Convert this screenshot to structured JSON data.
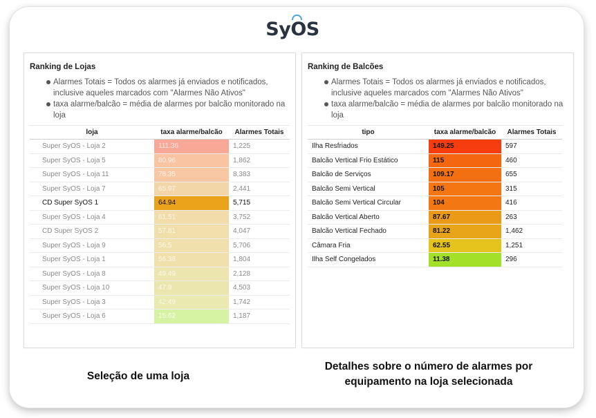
{
  "logo": {
    "text_pre": "Sy",
    "text_o": "O",
    "text_post": "S",
    "accent_color": "#4fa3d9"
  },
  "left_panel": {
    "title": "Ranking de Lojas",
    "notes": [
      "Alarmes Totais = Todos os alarmes já enviados e notificados, inclusive aqueles marcados com \"Alarmes Não Ativos\"",
      "taxa alarme/balcão = média de alarmes por balcão monitorado na loja"
    ],
    "headers": [
      "loja",
      "taxa alarme/balcão",
      "Alarmes Totais"
    ],
    "rows": [
      {
        "loja": "Super SyOS - Loja 2",
        "taxa": "111.36",
        "total": "1,225",
        "color": "#f9a898",
        "selected": false
      },
      {
        "loja": "Super SyOS - Loja 5",
        "taxa": "80.96",
        "total": "1,862",
        "color": "#f8c4a2",
        "selected": false
      },
      {
        "loja": "Super SyOS - Loja 11",
        "taxa": "78.35",
        "total": "8,383",
        "color": "#f8c8a4",
        "selected": false
      },
      {
        "loja": "Super SyOS - Loja 7",
        "taxa": "65.97",
        "total": "2,441",
        "color": "#f3d6a8",
        "selected": false
      },
      {
        "loja": "CD Super SyOS 1",
        "taxa": "64.94",
        "total": "5,715",
        "color": "#e9a21a",
        "selected": true
      },
      {
        "loja": "Super SyOS - Loja 4",
        "taxa": "61.51",
        "total": "3,752",
        "color": "#f2dcaa",
        "selected": false
      },
      {
        "loja": "CD Super SyOS 2",
        "taxa": "57.81",
        "total": "4,047",
        "color": "#f0dfab",
        "selected": false
      },
      {
        "loja": "Super SyOS - Loja 9",
        "taxa": "56.5",
        "total": "5,706",
        "color": "#efe0ac",
        "selected": false
      },
      {
        "loja": "Super SyOS - Loja 1",
        "taxa": "56.38",
        "total": "1,804",
        "color": "#efe0ac",
        "selected": false
      },
      {
        "loja": "Super SyOS - Loja 8",
        "taxa": "49.49",
        "total": "2,128",
        "color": "#ece5ae",
        "selected": false
      },
      {
        "loja": "Super SyOS - Loja 10",
        "taxa": "47.9",
        "total": "4,503",
        "color": "#ebe6ae",
        "selected": false
      },
      {
        "loja": "Super SyOS - Loja 3",
        "taxa": "42.49",
        "total": "1,742",
        "color": "#e9e9b0",
        "selected": false
      },
      {
        "loja": "Super SyOS - Loja 6",
        "taxa": "15.62",
        "total": "1,187",
        "color": "#d6f3a4",
        "selected": false
      }
    ]
  },
  "right_panel": {
    "title": "Ranking de Balcões",
    "notes": [
      "Alarmes Totais = Todos os alarmes já enviados e notificados, inclusive aqueles marcados com \"Alarmes Não Ativos\"",
      "taxa alarme/balcão = média de alarmes por balcão monitorado na loja"
    ],
    "headers": [
      "tipo",
      "taxa alarme/balcão",
      "Alarmes Totais"
    ],
    "rows": [
      {
        "tipo": "Ilha Resfriados",
        "taxa": "149.25",
        "total": "597",
        "color": "#f63d0f"
      },
      {
        "tipo": "Balcão Vertical Frio Estático",
        "taxa": "115",
        "total": "460",
        "color": "#f46610"
      },
      {
        "tipo": "Balcão de Serviços",
        "taxa": "109.17",
        "total": "655",
        "color": "#f37012"
      },
      {
        "tipo": "Balcão Semi Vertical",
        "taxa": "105",
        "total": "315",
        "color": "#f37613"
      },
      {
        "tipo": "Balcão Semi Vertical Circular",
        "taxa": "104",
        "total": "416",
        "color": "#f37814"
      },
      {
        "tipo": "Balcão Vertical Aberto",
        "taxa": "87.67",
        "total": "263",
        "color": "#eb9a17"
      },
      {
        "tipo": "Balcão Vertical Fechado",
        "taxa": "81.22",
        "total": "1,462",
        "color": "#e8a419"
      },
      {
        "tipo": "Câmara Fria",
        "taxa": "62.55",
        "total": "1,251",
        "color": "#e4c31c"
      },
      {
        "tipo": "Ilha Self Congelados",
        "taxa": "11.38",
        "total": "296",
        "color": "#a2e02a"
      }
    ]
  },
  "captions": {
    "left": "Seleção de uma loja",
    "right": "Detalhes sobre o número de alarmes por equipamento na loja selecionada"
  }
}
